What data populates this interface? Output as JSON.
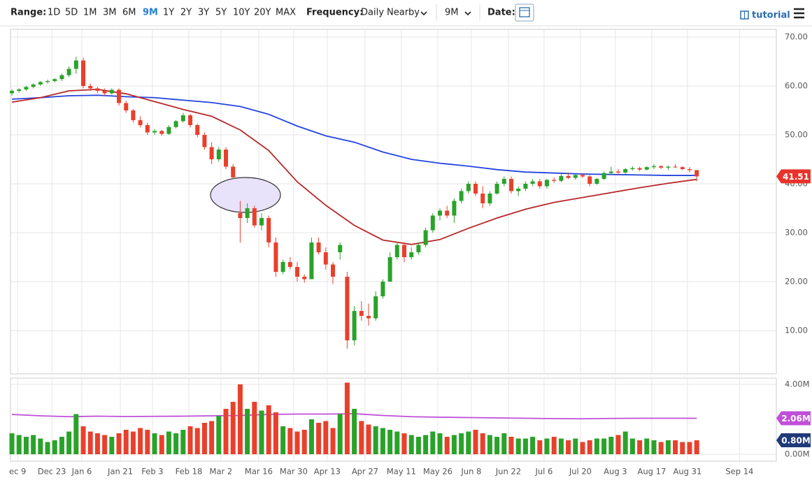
{
  "toolbar": {
    "range_label": "Range:",
    "ranges": [
      "1D",
      "5D",
      "1M",
      "3M",
      "6M",
      "9M",
      "1Y",
      "2Y",
      "3Y",
      "5Y",
      "10Y",
      "20Y",
      "MAX"
    ],
    "frequency_label": "Frequency:",
    "frequency": "Daily Nearby",
    "period": "9M",
    "date_label": "Date:",
    "tutorial": "tutorial"
  },
  "chart_data": {
    "type": "candlestick",
    "grid": true,
    "up_color": "#2aa22a",
    "down_color": "#e8402c",
    "candles": [
      {
        "o": 58.5,
        "h": 59.3,
        "l": 58,
        "c": 59
      },
      {
        "o": 59,
        "h": 59.5,
        "l": 58.6,
        "c": 59.3
      },
      {
        "o": 59.3,
        "h": 60,
        "l": 59,
        "c": 59.8
      },
      {
        "o": 59.8,
        "h": 60.5,
        "l": 59.5,
        "c": 60.3
      },
      {
        "o": 60.3,
        "h": 61,
        "l": 60,
        "c": 60.8
      },
      {
        "o": 60.8,
        "h": 61.3,
        "l": 60.5,
        "c": 61
      },
      {
        "o": 61,
        "h": 61.6,
        "l": 60.7,
        "c": 61.4
      },
      {
        "o": 61.4,
        "h": 62.5,
        "l": 61,
        "c": 62.2
      },
      {
        "o": 62.2,
        "h": 64,
        "l": 61.8,
        "c": 63.5
      },
      {
        "o": 63.5,
        "h": 66,
        "l": 62.5,
        "c": 65.2
      },
      {
        "o": 65.2,
        "h": 65.8,
        "l": 59.5,
        "c": 60
      },
      {
        "o": 60,
        "h": 60.5,
        "l": 59,
        "c": 59.5
      },
      {
        "o": 59.5,
        "h": 59.8,
        "l": 58.5,
        "c": 59
      },
      {
        "o": 59,
        "h": 59.5,
        "l": 58,
        "c": 58.5
      },
      {
        "o": 58.5,
        "h": 59.5,
        "l": 58.2,
        "c": 59.2
      },
      {
        "o": 59.2,
        "h": 59.5,
        "l": 56,
        "c": 56.5
      },
      {
        "o": 56.5,
        "h": 57,
        "l": 54.5,
        "c": 55
      },
      {
        "o": 55,
        "h": 55.3,
        "l": 52.5,
        "c": 53
      },
      {
        "o": 53,
        "h": 53.8,
        "l": 51.5,
        "c": 52
      },
      {
        "o": 52,
        "h": 52.5,
        "l": 50,
        "c": 50.5
      },
      {
        "o": 50.5,
        "h": 51.2,
        "l": 50,
        "c": 50.8
      },
      {
        "o": 50.8,
        "h": 51,
        "l": 49.8,
        "c": 50.2
      },
      {
        "o": 50.2,
        "h": 52,
        "l": 50,
        "c": 51.6
      },
      {
        "o": 51.6,
        "h": 53,
        "l": 51.3,
        "c": 52.8
      },
      {
        "o": 52.8,
        "h": 54.5,
        "l": 52.5,
        "c": 54
      },
      {
        "o": 54,
        "h": 54.3,
        "l": 51.5,
        "c": 52
      },
      {
        "o": 52,
        "h": 52.3,
        "l": 49.5,
        "c": 50
      },
      {
        "o": 50,
        "h": 50.5,
        "l": 47,
        "c": 47.5
      },
      {
        "o": 47.5,
        "h": 48.5,
        "l": 44,
        "c": 45
      },
      {
        "o": 45,
        "h": 47.5,
        "l": 44.5,
        "c": 47
      },
      {
        "o": 47,
        "h": 47.5,
        "l": 43,
        "c": 43.5
      },
      {
        "o": 43.5,
        "h": 44,
        "l": 41,
        "c": 41.3
      },
      {
        "o": 34,
        "h": 36.5,
        "l": 28,
        "c": 33
      },
      {
        "o": 33,
        "h": 36,
        "l": 32,
        "c": 35
      },
      {
        "o": 35,
        "h": 35.5,
        "l": 31,
        "c": 31.5
      },
      {
        "o": 31.5,
        "h": 34,
        "l": 30.5,
        "c": 33
      },
      {
        "o": 33,
        "h": 33.5,
        "l": 27,
        "c": 28
      },
      {
        "o": 28,
        "h": 29,
        "l": 21,
        "c": 22
      },
      {
        "o": 22,
        "h": 24.5,
        "l": 21.5,
        "c": 24
      },
      {
        "o": 24,
        "h": 25,
        "l": 22.5,
        "c": 23
      },
      {
        "o": 23,
        "h": 24,
        "l": 20,
        "c": 21
      },
      {
        "o": 21,
        "h": 21.5,
        "l": 19.8,
        "c": 20.5
      },
      {
        "o": 20.5,
        "h": 29,
        "l": 20.5,
        "c": 28
      },
      {
        "o": 28,
        "h": 29,
        "l": 25.5,
        "c": 26
      },
      {
        "o": 26,
        "h": 27,
        "l": 22.5,
        "c": 23.5
      },
      {
        "o": 23.5,
        "h": 24,
        "l": 19.5,
        "c": 21
      },
      {
        "o": 26,
        "h": 28,
        "l": 24.5,
        "c": 27.5
      },
      {
        "o": 21,
        "h": 22,
        "l": 6.3,
        "c": 8
      },
      {
        "o": 8,
        "h": 15,
        "l": 7,
        "c": 14
      },
      {
        "o": 14,
        "h": 16,
        "l": 12,
        "c": 13
      },
      {
        "o": 13,
        "h": 15.5,
        "l": 11,
        "c": 12.5
      },
      {
        "o": 12.5,
        "h": 18,
        "l": 12,
        "c": 17
      },
      {
        "o": 17,
        "h": 20.5,
        "l": 16.5,
        "c": 20
      },
      {
        "o": 20,
        "h": 26,
        "l": 20,
        "c": 25
      },
      {
        "o": 25,
        "h": 28,
        "l": 24.5,
        "c": 27.5
      },
      {
        "o": 27.5,
        "h": 28,
        "l": 24,
        "c": 25
      },
      {
        "o": 25,
        "h": 27,
        "l": 24.5,
        "c": 26
      },
      {
        "o": 26,
        "h": 28,
        "l": 25.5,
        "c": 27.5
      },
      {
        "o": 27.5,
        "h": 31,
        "l": 27,
        "c": 30.5
      },
      {
        "o": 30.5,
        "h": 34,
        "l": 30,
        "c": 33.5
      },
      {
        "o": 33.5,
        "h": 35,
        "l": 32.5,
        "c": 34.5
      },
      {
        "o": 34.5,
        "h": 35.5,
        "l": 33,
        "c": 33.5
      },
      {
        "o": 33.5,
        "h": 37,
        "l": 32,
        "c": 36.5
      },
      {
        "o": 36.5,
        "h": 39,
        "l": 36,
        "c": 38.5
      },
      {
        "o": 38.5,
        "h": 40.5,
        "l": 38,
        "c": 40
      },
      {
        "o": 40,
        "h": 40.5,
        "l": 37.5,
        "c": 38
      },
      {
        "o": 38,
        "h": 39.5,
        "l": 35,
        "c": 36
      },
      {
        "o": 36,
        "h": 38.5,
        "l": 35.5,
        "c": 38
      },
      {
        "o": 38,
        "h": 40.5,
        "l": 37.8,
        "c": 40
      },
      {
        "o": 40,
        "h": 41.5,
        "l": 39.5,
        "c": 41
      },
      {
        "o": 41,
        "h": 41.5,
        "l": 38,
        "c": 38.5
      },
      {
        "o": 38.5,
        "h": 39.5,
        "l": 37.5,
        "c": 39
      },
      {
        "o": 39,
        "h": 40.5,
        "l": 38.5,
        "c": 40
      },
      {
        "o": 40,
        "h": 41,
        "l": 39.5,
        "c": 40.5
      },
      {
        "o": 40.5,
        "h": 41,
        "l": 39,
        "c": 39.5
      },
      {
        "o": 39.5,
        "h": 41,
        "l": 39,
        "c": 40.8
      },
      {
        "o": 40.8,
        "h": 41.3,
        "l": 40.2,
        "c": 40.6
      },
      {
        "o": 40.6,
        "h": 42,
        "l": 40.3,
        "c": 41.6
      },
      {
        "o": 41.6,
        "h": 42.3,
        "l": 41,
        "c": 41.2
      },
      {
        "o": 41.2,
        "h": 42,
        "l": 40.8,
        "c": 41.8
      },
      {
        "o": 41.8,
        "h": 42.2,
        "l": 41.2,
        "c": 41.5
      },
      {
        "o": 41.5,
        "h": 41.8,
        "l": 39.5,
        "c": 40
      },
      {
        "o": 40,
        "h": 41.2,
        "l": 39.8,
        "c": 41
      },
      {
        "o": 41,
        "h": 42.5,
        "l": 40.8,
        "c": 42.2
      },
      {
        "o": 42.2,
        "h": 43.5,
        "l": 41.8,
        "c": 42.5
      },
      {
        "o": 42.5,
        "h": 43,
        "l": 41.9,
        "c": 42.3
      },
      {
        "o": 42.3,
        "h": 43.2,
        "l": 42,
        "c": 43
      },
      {
        "o": 43,
        "h": 43.6,
        "l": 42.7,
        "c": 43.2
      },
      {
        "o": 43.2,
        "h": 43.5,
        "l": 42.6,
        "c": 42.9
      },
      {
        "o": 42.9,
        "h": 43.6,
        "l": 42.7,
        "c": 43.4
      },
      {
        "o": 43.4,
        "h": 44,
        "l": 43,
        "c": 43.6
      },
      {
        "o": 43.6,
        "h": 43.8,
        "l": 43,
        "c": 43.3
      },
      {
        "o": 43.3,
        "h": 43.7,
        "l": 42.8,
        "c": 43.5
      },
      {
        "o": 43.5,
        "h": 44,
        "l": 43.2,
        "c": 43.4
      },
      {
        "o": 43.4,
        "h": 43.6,
        "l": 42.8,
        "c": 43
      },
      {
        "o": 43,
        "h": 43.4,
        "l": 42.3,
        "c": 42.8
      },
      {
        "o": 42.8,
        "h": 42.8,
        "l": 40.5,
        "c": 41.51
      }
    ],
    "xlim": [
      -0.2,
      107.16
    ],
    "xticks": [
      {
        "value": 0.8,
        "label": "ec 9"
      },
      {
        "value": 5.6,
        "label": "Dec 23"
      },
      {
        "value": 9.8,
        "label": "Jan 6"
      },
      {
        "value": 15.2,
        "label": "Jan 21"
      },
      {
        "value": 19.7,
        "label": "Feb 3"
      },
      {
        "value": 24.8,
        "label": "Feb 18"
      },
      {
        "value": 29.3,
        "label": "Mar 2"
      },
      {
        "value": 34.6,
        "label": "Mar 16"
      },
      {
        "value": 39.5,
        "label": "Mar 30"
      },
      {
        "value": 44.2,
        "label": "Apr 13"
      },
      {
        "value": 49.5,
        "label": "Apr 27"
      },
      {
        "value": 54.6,
        "label": "May 11"
      },
      {
        "value": 59.7,
        "label": "May 26"
      },
      {
        "value": 64.4,
        "label": "Jun 8"
      },
      {
        "value": 69.6,
        "label": "Jun 22"
      },
      {
        "value": 74.6,
        "label": "Jul 6"
      },
      {
        "value": 79.7,
        "label": "Jul 20"
      },
      {
        "value": 84.6,
        "label": "Aug 3"
      },
      {
        "value": 89.7,
        "label": "Aug 17"
      },
      {
        "value": 94.7,
        "label": "Aug 31"
      },
      {
        "value": 102,
        "label": "Sep 14"
      }
    ],
    "ylim": [
      1.14,
      71.57
    ],
    "yticks": [
      {
        "value": 10,
        "label": "10.00"
      },
      {
        "value": 20,
        "label": "20.00"
      },
      {
        "value": 30,
        "label": "30.00"
      },
      {
        "value": 40,
        "label": "40.00"
      },
      {
        "value": 50,
        "label": "50.00"
      },
      {
        "value": 60,
        "label": "60.00"
      },
      {
        "value": 70,
        "label": "70.00"
      }
    ],
    "last_price": 41.51,
    "last_price_color": "#e8332a",
    "ma_x": [
      0,
      4,
      8,
      12,
      16,
      20,
      24,
      28,
      32,
      36,
      40,
      44,
      48,
      52,
      56,
      60,
      64,
      68,
      72,
      76,
      80,
      84,
      88,
      92,
      96
    ],
    "moving_averages": [
      {
        "color": "#2444e0",
        "values": [
          57.3,
          57.6,
          58,
          58.1,
          57.8,
          57.6,
          57.1,
          56.6,
          55.8,
          54.2,
          51.8,
          49.8,
          48.5,
          46.5,
          45,
          44.2,
          43.6,
          42.9,
          42.4,
          42.2,
          42,
          41.9,
          41.8,
          41.7,
          41.7
        ]
      },
      {
        "color": "#b8282a",
        "values": [
          56.7,
          57.6,
          59,
          59.3,
          58.4,
          56.8,
          55.2,
          53.8,
          51,
          46.8,
          40.4,
          35.6,
          31.5,
          28.5,
          27.6,
          28.6,
          30.9,
          33,
          34.8,
          36.2,
          37.2,
          38.2,
          39.2,
          40.1,
          40.9
        ]
      }
    ],
    "volume": {
      "values": [
        1.2,
        1.1,
        1.0,
        1.1,
        0.9,
        0.7,
        0.8,
        1.0,
        1.3,
        2.3,
        1.6,
        1.3,
        1.2,
        1.1,
        1.0,
        1.2,
        1.4,
        1.3,
        1.5,
        1.4,
        1.2,
        1.1,
        1.3,
        1.2,
        1.4,
        1.6,
        1.5,
        1.8,
        1.9,
        2.2,
        2.6,
        3.0,
        4.0,
        2.6,
        3.0,
        2.5,
        2.8,
        2.4,
        1.6,
        1.5,
        1.3,
        1.4,
        2.0,
        1.8,
        1.9,
        1.5,
        2.3,
        4.1,
        2.6,
        1.9,
        1.7,
        1.6,
        1.5,
        1.4,
        1.3,
        1.2,
        1.1,
        1.0,
        1.1,
        1.3,
        1.2,
        1.0,
        1.1,
        1.2,
        1.3,
        1.4,
        1.2,
        1.1,
        1.0,
        1.2,
        1.0,
        0.9,
        0.9,
        1.0,
        0.8,
        0.9,
        1.0,
        0.9,
        0.8,
        0.9,
        0.7,
        0.8,
        0.9,
        0.9,
        1.0,
        1.1,
        1.3,
        0.9,
        0.8,
        0.9,
        0.8,
        0.7,
        0.8,
        0.8,
        0.7,
        0.7,
        0.8
      ],
      "ylim": [
        -0.4,
        4.36
      ],
      "yticks": [
        {
          "value": 0,
          "label": "0.00M"
        },
        {
          "value": 4,
          "label": "4.00M"
        }
      ],
      "average": {
        "color": "#c04fd8",
        "values": [
          2.28,
          2.2,
          2.15,
          2.18,
          2.16,
          2.17,
          2.18,
          2.2,
          2.22,
          2.28,
          2.3,
          2.3,
          2.32,
          2.22,
          2.15,
          2.12,
          2.1,
          2.08,
          2.06,
          2.04,
          2.03,
          2.05,
          2.06,
          2.06,
          2.06
        ]
      },
      "average_label": {
        "value": 2.06,
        "label": "2.06M"
      },
      "last_label": {
        "value": 0.8,
        "label": "0.80M",
        "color": "#1f3a78"
      }
    }
  }
}
